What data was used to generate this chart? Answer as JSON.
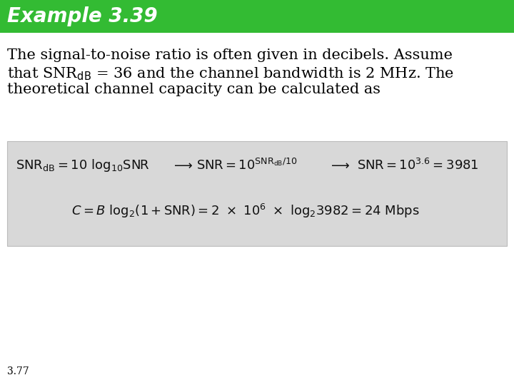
{
  "title": "Example 3.39",
  "title_bg_color": "#33bb33",
  "title_text_color": "#ffffff",
  "title_fontsize": 20,
  "body_text_color": "#000000",
  "body_fontsize": 15,
  "body_line1": "The signal-to-noise ratio is often given in decibels. Assume",
  "body_line2": "that SNR$_{\\mathrm{dB}}$ = 36 and the channel bandwidth is 2 MHz. The",
  "body_line3": "theoretical channel capacity can be calculated as",
  "formula_box_color": "#d8d8d8",
  "formula_box_edge": "#bbbbbb",
  "formula_row1_a": "$\\mathrm{SNR_{dB} = 10\\ log_{10}SNR}$",
  "formula_row1_arrow1": "$\\longrightarrow$",
  "formula_row1_b": "$\\mathrm{SNR = 10^{SNR_{dB}/10}}$",
  "formula_row1_arrow2": "$\\longrightarrow$",
  "formula_row1_c": "$\\mathrm{SNR = 10^{3.6} = 3981}$",
  "formula_row2": "$C = B\\ \\mathrm{log_2(1 + SNR) = 2\\ \\times\\ 10^6\\ \\times\\ log_2 3982 = 24\\ Mbps}$",
  "page_label": "3.77",
  "page_label_fontsize": 10,
  "background_color": "#ffffff"
}
